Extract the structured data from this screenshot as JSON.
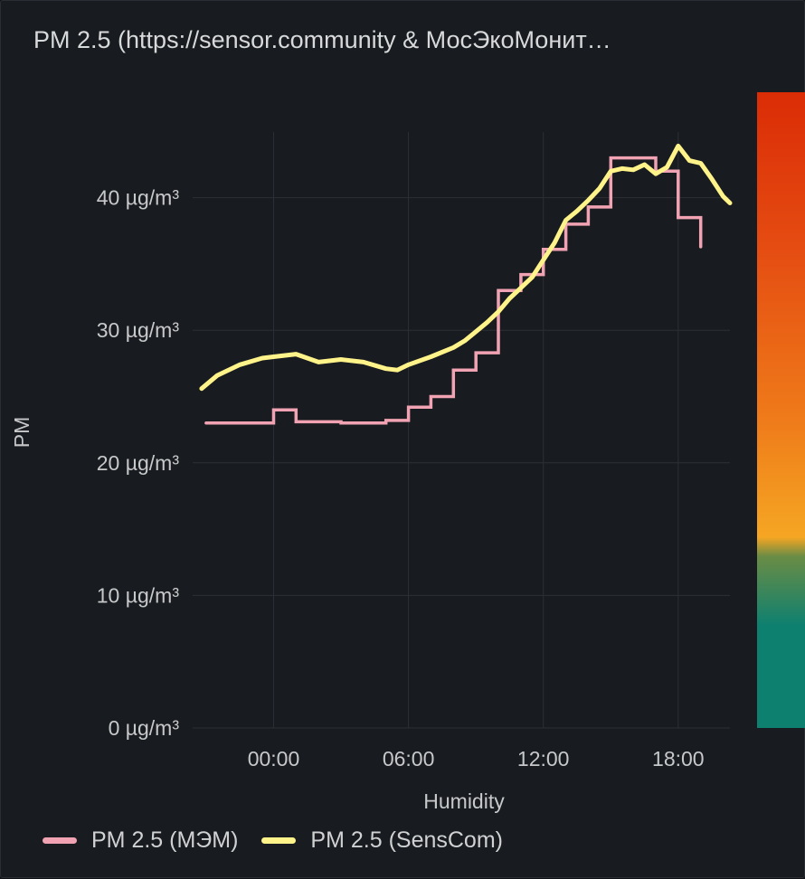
{
  "panel": {
    "title": "PM 2.5 (https://sensor.community & МосЭкоМонит…"
  },
  "colors": {
    "background": "#181b1f",
    "grid": "#2c2f35",
    "mem": "#f2a3b3",
    "senscom": "#fff38a",
    "scale": [
      "#0d8070",
      "#3a8a55",
      "#f5a623",
      "#f07a19",
      "#e54a12",
      "#db2c06"
    ]
  },
  "chart_data": {
    "type": "line",
    "title": "PM 2.5 (https://sensor.community & МосЭкоМонит…",
    "xlabel": "Humidity",
    "ylabel": "PM",
    "x_unit": "hours",
    "xlim": [
      -3.6,
      20.3
    ],
    "ylim": [
      0,
      47
    ],
    "x_ticks": [
      {
        "value": 0,
        "label": "00:00"
      },
      {
        "value": 6,
        "label": "06:00"
      },
      {
        "value": 12,
        "label": "12:00"
      },
      {
        "value": 18,
        "label": "18:00"
      }
    ],
    "y_ticks": [
      {
        "value": 0,
        "label": "0 µg/m³"
      },
      {
        "value": 10,
        "label": "10 µg/m³"
      },
      {
        "value": 20,
        "label": "20 µg/m³"
      },
      {
        "value": 30,
        "label": "30 µg/m³"
      },
      {
        "value": 40,
        "label": "40 µg/m³"
      }
    ],
    "grid": true,
    "legend_position": "bottom-left",
    "series": [
      {
        "name": "PM 2.5 (МЭМ)",
        "style": "step",
        "color": "#f2a3b3",
        "points": [
          [
            -3.0,
            23.0
          ],
          [
            0.0,
            23.0
          ],
          [
            0.0,
            24.0
          ],
          [
            1.0,
            24.0
          ],
          [
            1.0,
            23.1
          ],
          [
            3.0,
            23.1
          ],
          [
            3.0,
            23.0
          ],
          [
            5.0,
            23.0
          ],
          [
            5.0,
            23.2
          ],
          [
            6.0,
            23.2
          ],
          [
            6.0,
            24.2
          ],
          [
            7.0,
            24.2
          ],
          [
            7.0,
            25.0
          ],
          [
            8.0,
            25.0
          ],
          [
            8.0,
            27.0
          ],
          [
            9.0,
            27.0
          ],
          [
            9.0,
            28.3
          ],
          [
            10.0,
            28.3
          ],
          [
            10.0,
            33.0
          ],
          [
            11.0,
            33.0
          ],
          [
            11.0,
            34.2
          ],
          [
            12.0,
            34.2
          ],
          [
            12.0,
            36.1
          ],
          [
            13.0,
            36.1
          ],
          [
            13.0,
            38.0
          ],
          [
            14.0,
            38.0
          ],
          [
            14.0,
            39.3
          ],
          [
            15.0,
            39.3
          ],
          [
            15.0,
            43.0
          ],
          [
            16.0,
            43.0
          ],
          [
            16.0,
            43.0
          ],
          [
            17.0,
            43.0
          ],
          [
            17.0,
            42.0
          ],
          [
            18.0,
            42.0
          ],
          [
            18.0,
            38.5
          ],
          [
            19.0,
            38.5
          ],
          [
            19.0,
            36.3
          ]
        ]
      },
      {
        "name": "PM 2.5 (SensCom)",
        "style": "line",
        "color": "#fff38a",
        "points": [
          [
            -3.2,
            25.6
          ],
          [
            -2.5,
            26.6
          ],
          [
            -1.5,
            27.4
          ],
          [
            -0.5,
            27.9
          ],
          [
            0.0,
            28.0
          ],
          [
            1.0,
            28.2
          ],
          [
            2.0,
            27.6
          ],
          [
            3.0,
            27.8
          ],
          [
            4.0,
            27.6
          ],
          [
            5.0,
            27.1
          ],
          [
            5.5,
            27.0
          ],
          [
            6.0,
            27.4
          ],
          [
            7.0,
            28.0
          ],
          [
            8.0,
            28.7
          ],
          [
            8.5,
            29.2
          ],
          [
            9.0,
            29.9
          ],
          [
            9.5,
            30.6
          ],
          [
            10.0,
            31.4
          ],
          [
            10.5,
            32.4
          ],
          [
            11.0,
            33.2
          ],
          [
            11.5,
            34.0
          ],
          [
            12.0,
            35.3
          ],
          [
            12.5,
            36.6
          ],
          [
            13.0,
            38.3
          ],
          [
            13.5,
            39.0
          ],
          [
            14.0,
            39.8
          ],
          [
            14.5,
            40.7
          ],
          [
            15.0,
            42.0
          ],
          [
            15.5,
            42.2
          ],
          [
            16.0,
            42.1
          ],
          [
            16.5,
            42.5
          ],
          [
            17.0,
            41.8
          ],
          [
            17.5,
            42.3
          ],
          [
            18.0,
            43.9
          ],
          [
            18.5,
            42.8
          ],
          [
            19.0,
            42.6
          ],
          [
            19.5,
            41.4
          ],
          [
            20.0,
            40.1
          ],
          [
            20.3,
            39.6
          ]
        ]
      }
    ]
  }
}
